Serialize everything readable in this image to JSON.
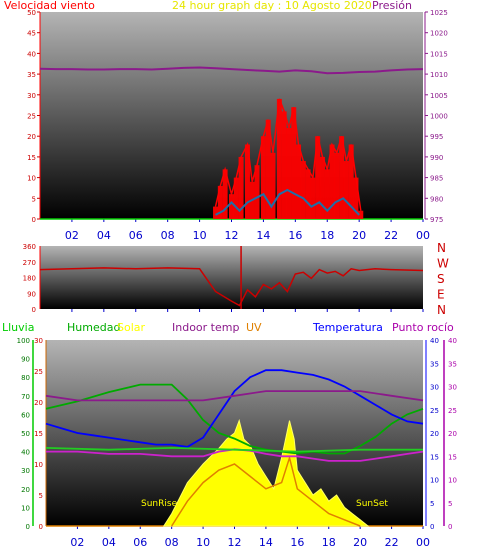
{
  "colors": {
    "wind": "#ff0000",
    "pressure": "#8b1a8b",
    "title": "#e6e600",
    "direction": "#cc0000",
    "humidity": "#00aa00",
    "solar": "#ffff00",
    "uv": "#e08000",
    "temperature": "#0000ff",
    "dewpoint": "#aa00aa",
    "rain": "#00cc00",
    "grid_hours": "#0000cc"
  },
  "header": {
    "left_label": "Velocidad viento",
    "title": "24 hour graph day : 10 Agosto 2020",
    "right_label": "Presión"
  },
  "hours": [
    "02",
    "04",
    "06",
    "08",
    "10",
    "12",
    "14",
    "16",
    "18",
    "20",
    "22",
    "00"
  ],
  "direction_letters": [
    "N",
    "W",
    "S",
    "E",
    "N"
  ],
  "middle_header": {
    "lluvia": "Lluvia",
    "humedad": "Humedad",
    "solar": "Solar",
    "indoor": "Indoor temp",
    "uv": "UV",
    "temperatura": "Temperatura",
    "rocio": "Punto rocío"
  },
  "annotations": {
    "sunrise": "SunRise",
    "sunset": "SunSet"
  },
  "chart_data": [
    {
      "type": "line",
      "title": "24 hour graph day : 10 Agosto 2020",
      "x_hours_range": [
        0,
        24
      ],
      "left_axis": {
        "label": "Velocidad viento",
        "ticks": [
          0,
          5,
          10,
          15,
          20,
          25,
          30,
          35,
          40,
          45,
          50
        ],
        "range": [
          0,
          50
        ]
      },
      "right_axis": {
        "label": "Presión",
        "ticks": [
          975,
          980,
          985,
          990,
          995,
          1000,
          1005,
          1010,
          1015,
          1020,
          1025
        ],
        "range": [
          975,
          1025
        ]
      },
      "series": [
        {
          "name": "Presión",
          "axis": "right",
          "x": [
            0,
            1,
            2,
            3,
            4,
            5,
            6,
            7,
            8,
            9,
            10,
            11,
            12,
            13,
            14,
            15,
            16,
            17,
            18,
            19,
            20,
            21,
            22,
            23,
            24
          ],
          "y": [
            1011.3,
            1011.2,
            1011.2,
            1011.1,
            1011.1,
            1011.2,
            1011.2,
            1011.1,
            1011.3,
            1011.5,
            1011.6,
            1011.4,
            1011.2,
            1011.0,
            1010.8,
            1010.6,
            1010.9,
            1010.7,
            1010.2,
            1010.3,
            1010.5,
            1010.6,
            1010.9,
            1011.1,
            1011.2
          ]
        },
        {
          "name": "Velocidad viento",
          "axis": "left",
          "x": [
            11.0,
            11.3,
            11.6,
            12.0,
            12.3,
            12.6,
            13.0,
            13.3,
            13.6,
            14.0,
            14.3,
            14.6,
            15.0,
            15.3,
            15.6,
            15.9,
            16.2,
            16.5,
            16.8,
            17.1,
            17.4,
            17.7,
            18.0,
            18.3,
            18.6,
            18.9,
            19.2,
            19.5,
            19.8,
            20.1
          ],
          "y": [
            3,
            8,
            12,
            6,
            10,
            15,
            18,
            9,
            13,
            20,
            24,
            16,
            29,
            26,
            22,
            27,
            18,
            14,
            12,
            10,
            20,
            15,
            12,
            18,
            16,
            20,
            14,
            18,
            10,
            2
          ]
        },
        {
          "axis": "left",
          "x": [
            11.0,
            11.5,
            12.0,
            12.5,
            13.0,
            13.5,
            14.0,
            14.5,
            15.0,
            15.5,
            16.0,
            16.5,
            17.0,
            17.5,
            18.0,
            18.5,
            19.0,
            19.5,
            20.0
          ],
          "y": [
            1,
            2,
            4,
            2,
            4,
            5,
            6,
            3,
            6,
            7,
            6,
            5,
            3,
            4,
            2,
            4,
            5,
            3,
            1
          ]
        }
      ]
    },
    {
      "type": "line",
      "left_axis": {
        "ticks": [
          0,
          90,
          180,
          270,
          360
        ],
        "range": [
          0,
          360
        ]
      },
      "right_axis": {
        "ticks": [
          "N",
          "W",
          "S",
          "E",
          "N"
        ]
      },
      "series": [
        {
          "axis": "left",
          "x": [
            0,
            2,
            4,
            6,
            8,
            10,
            11,
            12,
            12.5,
            13,
            13.5,
            14,
            14.5,
            15,
            15.5,
            16,
            16.5,
            17,
            17.5,
            18,
            18.5,
            19,
            19.5,
            20,
            21,
            22,
            24
          ],
          "y": [
            225,
            230,
            235,
            230,
            235,
            230,
            100,
            45,
            20,
            110,
            70,
            140,
            115,
            150,
            100,
            200,
            210,
            175,
            225,
            205,
            215,
            190,
            230,
            220,
            230,
            225,
            220
          ]
        }
      ]
    },
    {
      "type": "line",
      "axes": {
        "lluvia": {
          "ticks": [
            0,
            10,
            20,
            30,
            40,
            50,
            60,
            70,
            80,
            90,
            100
          ],
          "range": [
            0,
            100
          ]
        },
        "humedad_solar": {
          "ticks": [
            0,
            5,
            10,
            15,
            20,
            25,
            30
          ],
          "range": [
            0,
            30
          ]
        },
        "temperatura": {
          "ticks": [
            0,
            5,
            10,
            15,
            20,
            25,
            30,
            35,
            40
          ],
          "range": [
            0,
            40
          ]
        },
        "punto_rocio": {
          "ticks": [
            0,
            5,
            10,
            15,
            20,
            25,
            30,
            35,
            40
          ],
          "range": [
            0,
            40
          ]
        }
      },
      "series": [
        {
          "name": "Humedad",
          "axis": "lluvia",
          "x": [
            0,
            2,
            4,
            6,
            8,
            9,
            10,
            11,
            12,
            13,
            14,
            15,
            16,
            17,
            18,
            19,
            20,
            21,
            22,
            23,
            24
          ],
          "y": [
            63,
            67,
            72,
            76,
            76,
            68,
            57,
            50,
            47,
            43,
            41,
            40,
            39,
            40,
            39,
            39,
            43,
            48,
            55,
            60,
            63
          ]
        },
        {
          "name": "Temperatura",
          "axis": "temperatura",
          "x": [
            0,
            1,
            2,
            3,
            4,
            5,
            6,
            7,
            8,
            9,
            10,
            11,
            12,
            13,
            14,
            15,
            16,
            17,
            18,
            19,
            20,
            21,
            22,
            23,
            24
          ],
          "y": [
            22,
            21,
            20,
            19.5,
            19,
            18.5,
            18,
            17.5,
            17.5,
            17,
            19,
            24,
            29,
            32,
            33.5,
            33.5,
            33,
            32.5,
            31.5,
            30,
            28,
            26,
            24,
            22.5,
            22
          ]
        },
        {
          "name": "Punto rocío",
          "axis": "punto_rocio",
          "x": [
            0,
            2,
            4,
            6,
            8,
            10,
            12,
            14,
            16,
            18,
            20,
            22,
            24
          ],
          "y": [
            28,
            27,
            27,
            27,
            27,
            27,
            28,
            29,
            29,
            29,
            29,
            28,
            27
          ]
        },
        {
          "name": "Indoor temp",
          "axis": "temperatura",
          "x": [
            0,
            2,
            4,
            6,
            8,
            10,
            11,
            12,
            13,
            14,
            15,
            16,
            17,
            18,
            19,
            20,
            21,
            22,
            23,
            24
          ],
          "y": [
            16,
            16,
            15.5,
            15.5,
            15,
            15,
            16,
            16.5,
            16.2,
            15.5,
            15,
            15,
            14.5,
            14,
            14,
            14,
            14.5,
            15,
            15.5,
            16
          ]
        },
        {
          "name": "Lluvia",
          "axis": "lluvia",
          "x": [
            0,
            4,
            8,
            12,
            16,
            20,
            24
          ],
          "y": [
            42,
            41,
            42,
            41,
            40,
            41,
            41
          ]
        },
        {
          "name": "Solar",
          "axis": "humedad_solar",
          "x": [
            7.5,
            8,
            9,
            10,
            11,
            11.5,
            12,
            12.3,
            12.6,
            13,
            13.5,
            14,
            14.5,
            15,
            15.5,
            15.8,
            16,
            16.5,
            17,
            17.5,
            18,
            18.5,
            19,
            19.5,
            20,
            20.5
          ],
          "y": [
            0,
            2,
            7,
            10,
            12.5,
            14,
            15,
            17,
            14,
            13,
            10,
            8,
            6,
            11,
            17,
            14,
            9,
            7,
            5,
            6,
            4,
            5,
            3,
            2,
            1,
            0
          ]
        },
        {
          "name": "UV",
          "axis": "humedad_solar",
          "x": [
            8,
            9,
            10,
            11,
            12,
            13,
            14,
            15,
            15.5,
            16,
            17,
            18,
            19,
            20
          ],
          "y": [
            0,
            4,
            7,
            9,
            10,
            8,
            6,
            7,
            11,
            6,
            4,
            2,
            1,
            0
          ]
        }
      ]
    }
  ]
}
